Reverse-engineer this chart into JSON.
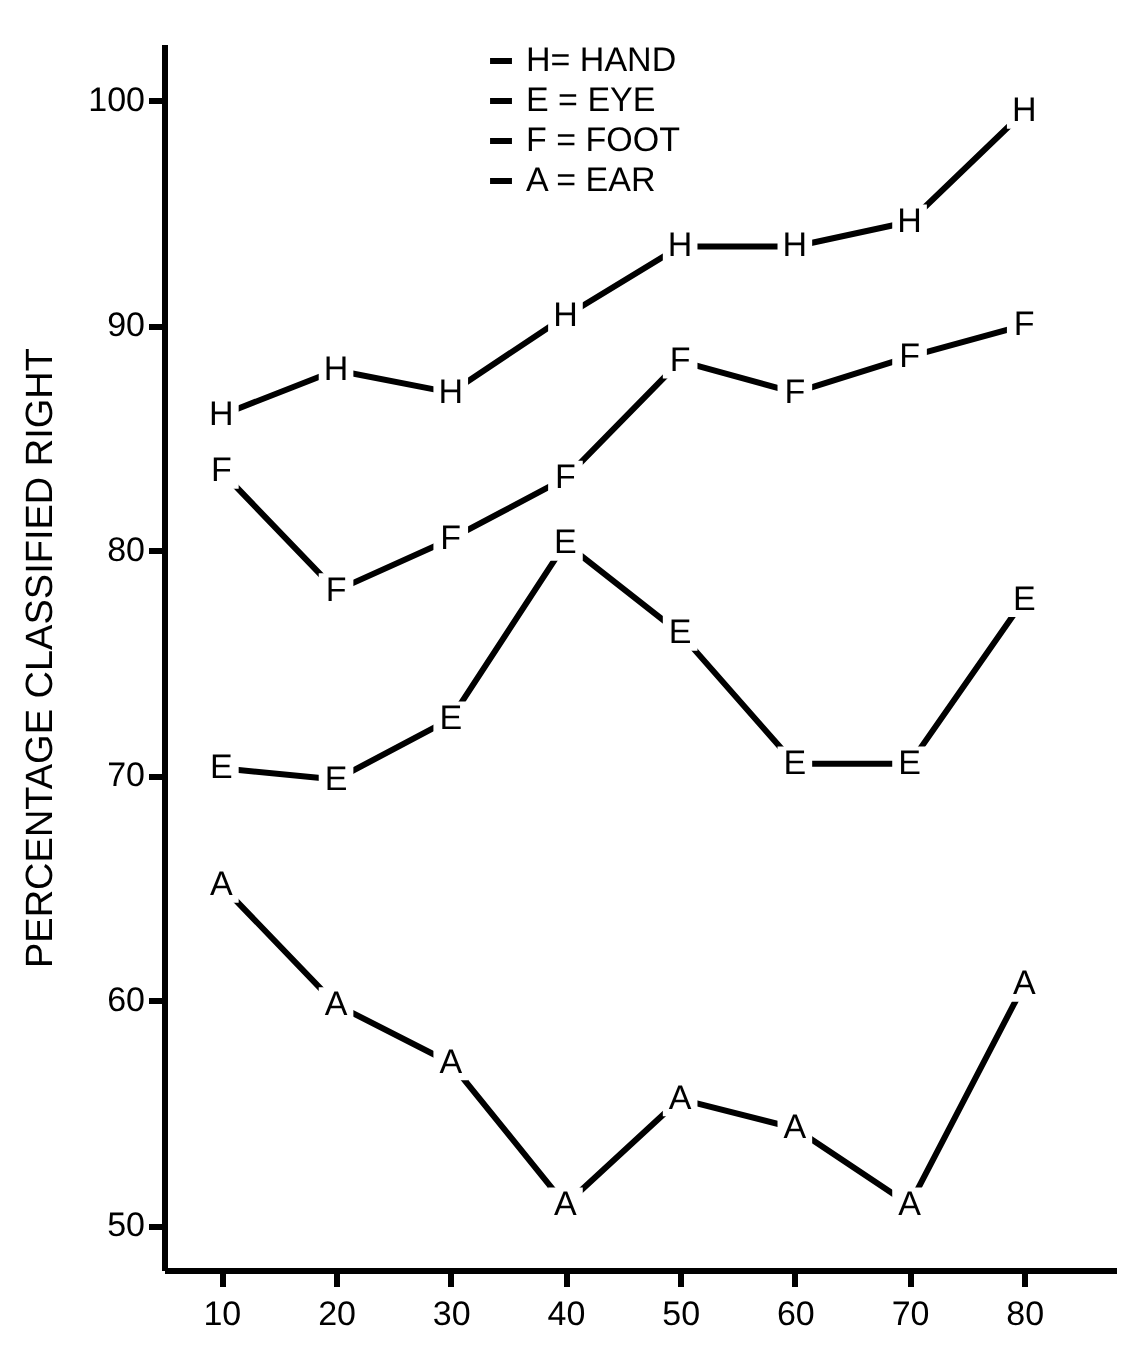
{
  "chart_data": {
    "type": "line",
    "ylabel": "PERCENTAGE   CLASSIFIED   RIGHT",
    "x": [
      10,
      20,
      30,
      40,
      50,
      60,
      70,
      80
    ],
    "series": [
      {
        "name": "H= HAND",
        "color": "#000000",
        "values": [
          86,
          88,
          87,
          90.4,
          93.5,
          93.5,
          94.6,
          99.5
        ],
        "value_labels": [
          "H",
          "H",
          "H",
          "H",
          "H",
          "H",
          "H",
          "H"
        ]
      },
      {
        "name": "E = EYE",
        "color": "#000000",
        "values": [
          70.3,
          69.8,
          72.5,
          80.3,
          76.3,
          70.5,
          70.5,
          77.8
        ],
        "value_labels": [
          "E",
          "E",
          "E",
          "E",
          "E",
          "E",
          "E",
          "E"
        ]
      },
      {
        "name": "F = FOOT",
        "color": "#000000",
        "values": [
          83.5,
          78.2,
          80.5,
          83.2,
          88.4,
          87,
          88.6,
          90
        ],
        "value_labels": [
          "F",
          "F",
          "F",
          "F",
          "F",
          "F",
          "F",
          "F"
        ]
      },
      {
        "name": "A = EAR",
        "color": "#000000",
        "values": [
          65.1,
          59.8,
          57.2,
          50.9,
          55.6,
          54.3,
          50.9,
          60.7
        ],
        "value_labels": [
          "A",
          "A",
          "A",
          "A",
          "A",
          "A",
          "A",
          "A"
        ]
      }
    ],
    "xlim": [
      5,
      88
    ],
    "xticks": [
      10,
      20,
      30,
      40,
      50,
      60,
      70,
      80
    ],
    "ylim": [
      48,
      102.5
    ],
    "yticks": [
      50,
      60,
      70,
      80,
      90,
      100
    ],
    "grid": false,
    "legend": "top left",
    "line_style": "solid",
    "marker": "square"
  }
}
